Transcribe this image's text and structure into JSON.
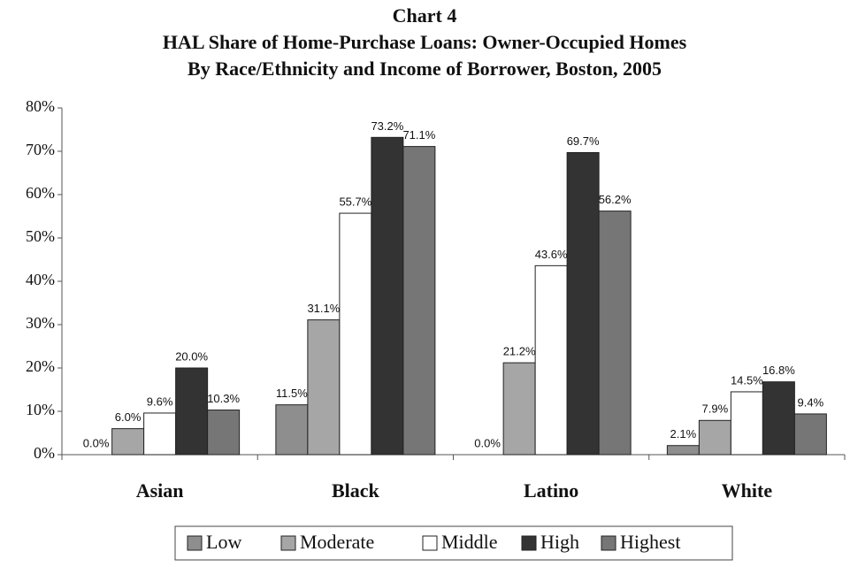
{
  "chart_data": {
    "type": "bar",
    "title": "Chart 4",
    "subtitle": [
      "HAL Share of Home-Purchase Loans: Owner-Occupied Homes",
      "By Race/Ethnicity and Income of Borrower, Boston, 2005"
    ],
    "categories": [
      "Asian",
      "Black",
      "Latino",
      "White"
    ],
    "series": [
      {
        "name": "Low",
        "color": "#8e8e8e",
        "values": [
          0.0,
          11.5,
          0.0,
          2.1
        ],
        "value_labels": [
          "0.0%",
          "11.5%",
          "0.0%",
          "2.1%"
        ]
      },
      {
        "name": "Moderate",
        "color": "#a6a6a6",
        "values": [
          6.0,
          31.1,
          21.2,
          7.9
        ],
        "value_labels": [
          "6.0%",
          "31.1%",
          "21.2%",
          "7.9%"
        ]
      },
      {
        "name": "Middle",
        "color": "#ffffff",
        "values": [
          9.6,
          55.7,
          43.6,
          14.5
        ],
        "value_labels": [
          "9.6%",
          "55.7%",
          "43.6%",
          "14.5%"
        ]
      },
      {
        "name": "High",
        "color": "#333333",
        "values": [
          20.0,
          73.2,
          69.7,
          16.8
        ],
        "value_labels": [
          "20.0%",
          "73.2%",
          "69.7%",
          "16.8%"
        ]
      },
      {
        "name": "Highest",
        "color": "#767676",
        "values": [
          10.3,
          71.1,
          56.2,
          9.4
        ],
        "value_labels": [
          "10.3%",
          "71.1%",
          "56.2%",
          "9.4%"
        ]
      }
    ],
    "ylim": [
      0,
      80
    ],
    "yticks": [
      {
        "value": 0,
        "label": "0%"
      },
      {
        "value": 10,
        "label": "10%"
      },
      {
        "value": 20,
        "label": "20%"
      },
      {
        "value": 30,
        "label": "30%"
      },
      {
        "value": 40,
        "label": "40%"
      },
      {
        "value": 50,
        "label": "50%"
      },
      {
        "value": 60,
        "label": "60%"
      },
      {
        "value": 70,
        "label": "70%"
      },
      {
        "value": 80,
        "label": "80%"
      }
    ],
    "legend": "bottom"
  }
}
